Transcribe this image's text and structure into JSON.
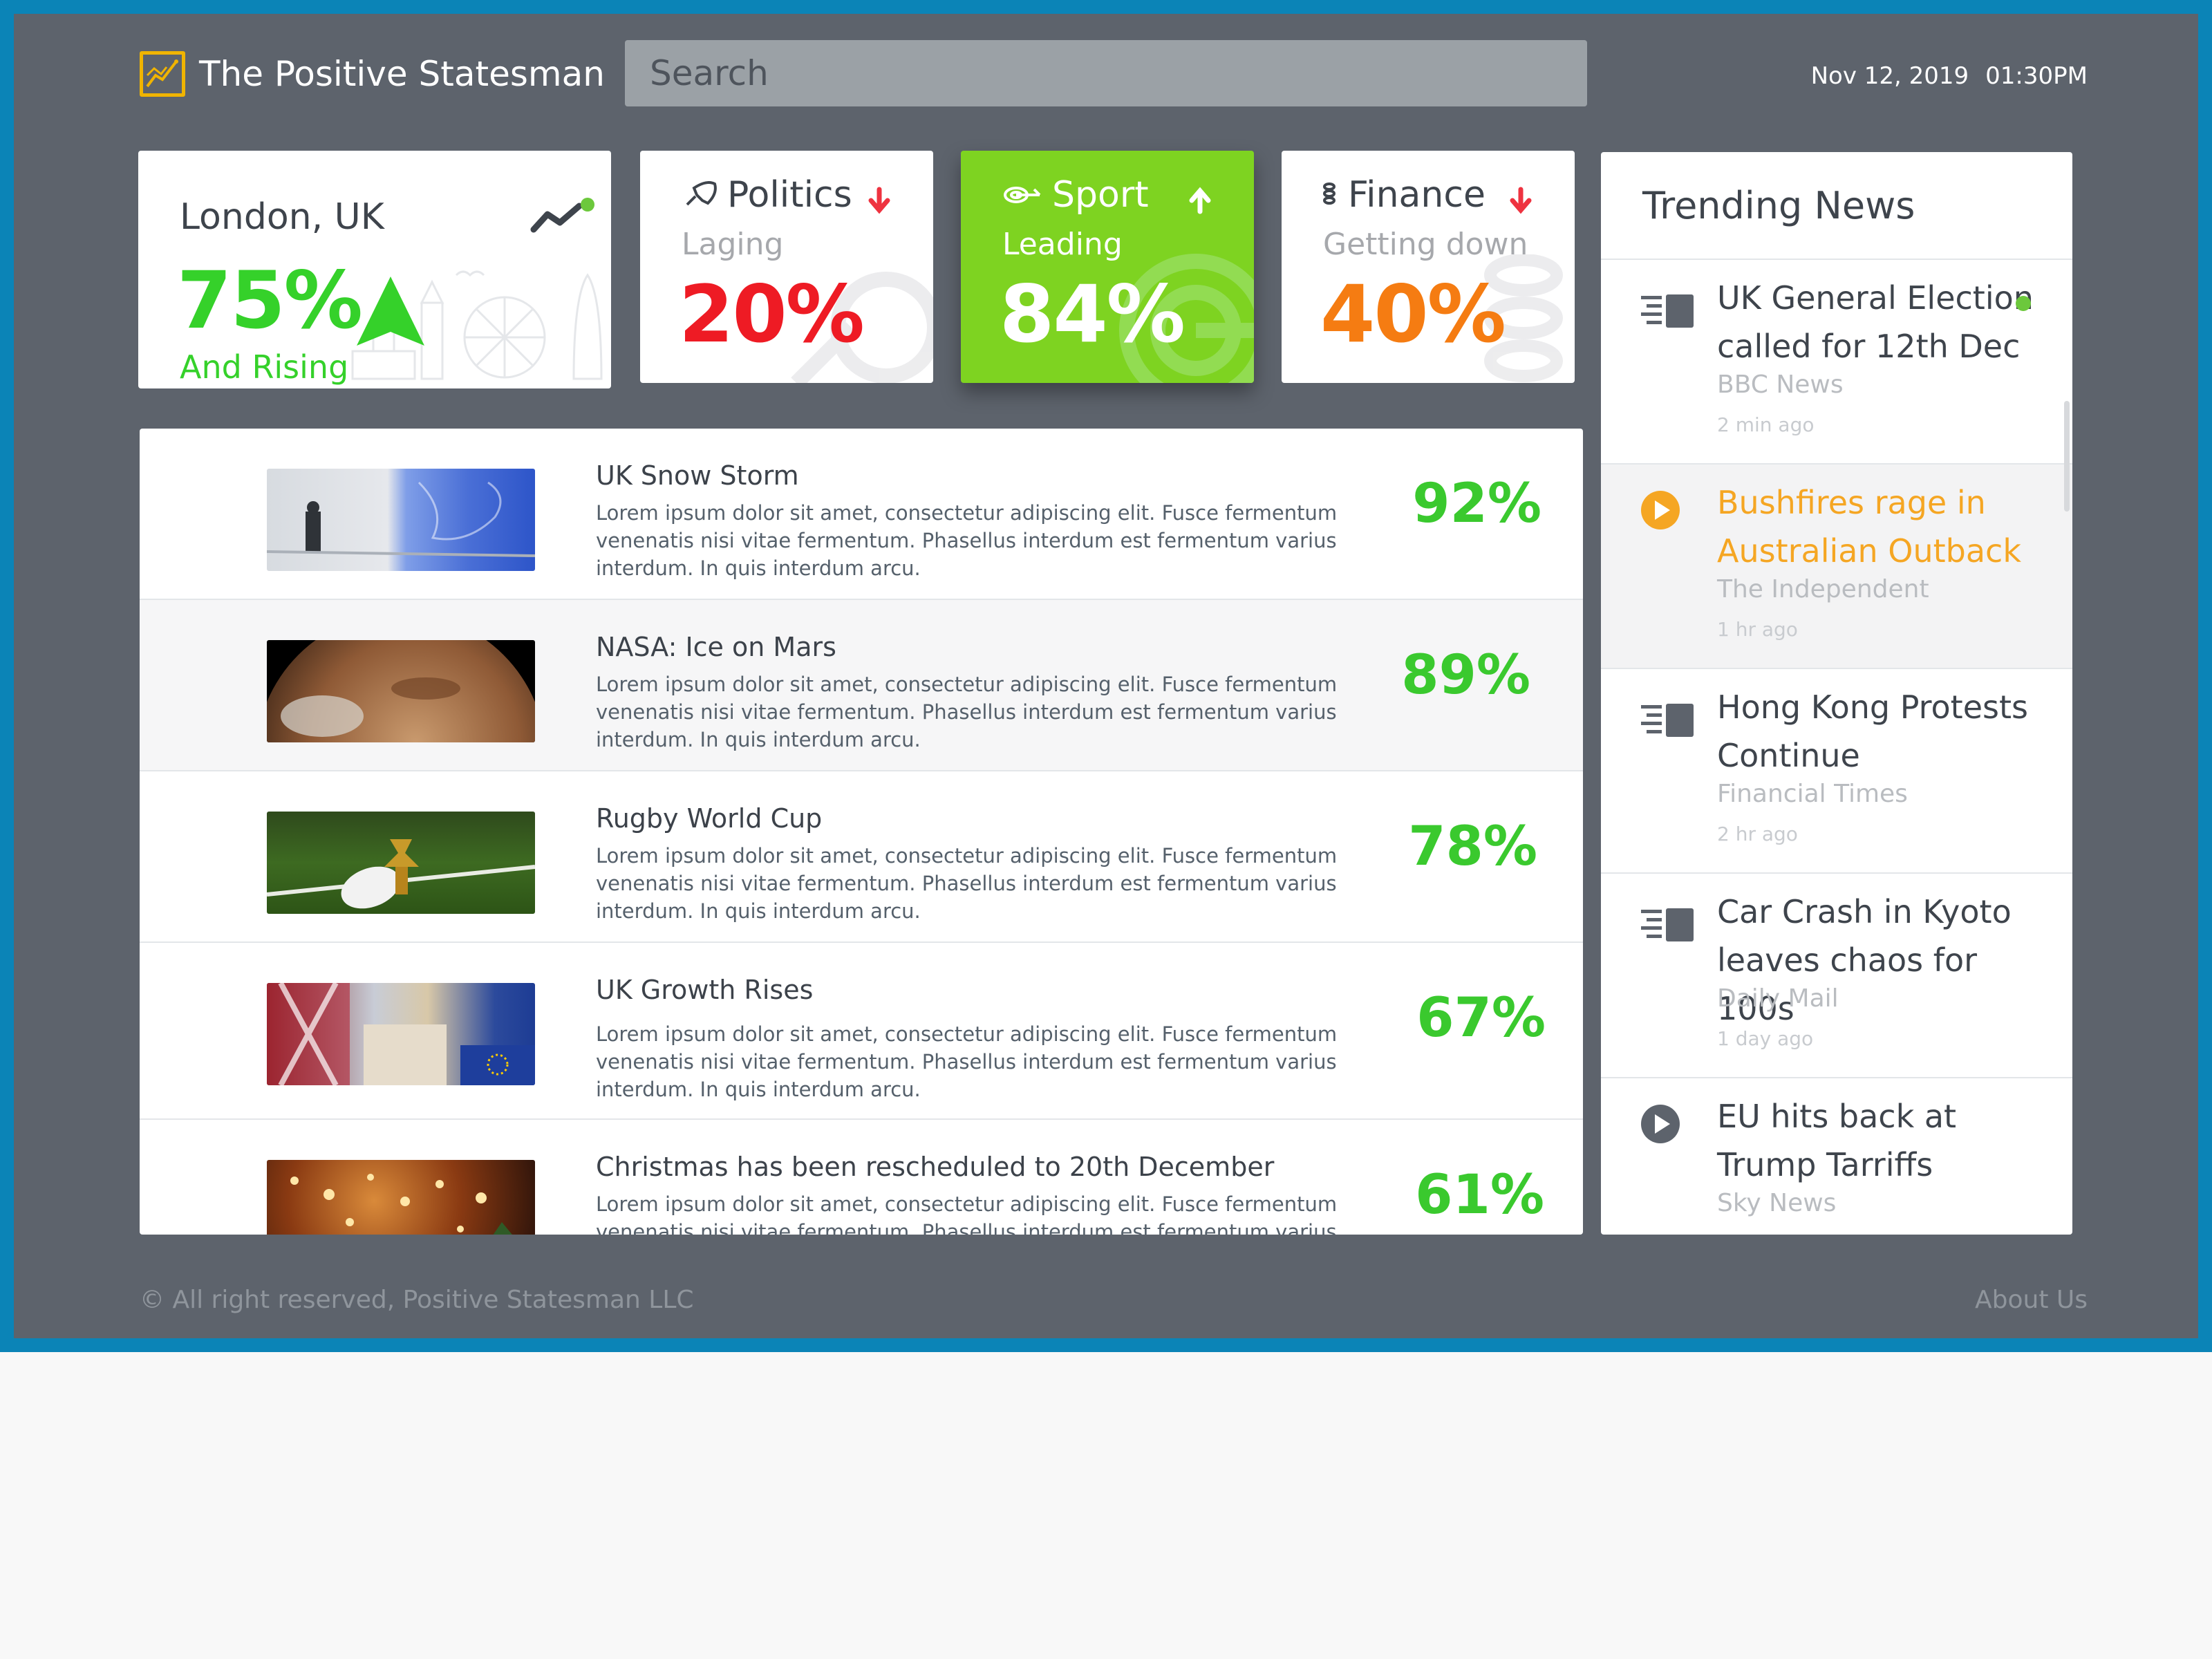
{
  "header": {
    "app_name": "The Positive Statesman",
    "search_placeholder": "Search",
    "date": "Nov 12, 2019",
    "time": "01:30PM"
  },
  "cards": {
    "location": {
      "title": "London, UK",
      "value": "75%",
      "subtitle": "And Rising",
      "value_color": "#35d12a",
      "trend": "up"
    },
    "politics": {
      "title": "Politics",
      "subtitle": "Laging",
      "value": "20%",
      "value_color": "#ee1b24",
      "trend": "down",
      "icon": "rocket-icon"
    },
    "sport": {
      "title": "Sport",
      "subtitle": "Leading",
      "value": "84%",
      "value_color": "#ffffff",
      "trend": "up",
      "icon": "target-icon",
      "highlighted": true
    },
    "finance": {
      "title": "Finance",
      "subtitle": "Getting down",
      "value": "40%",
      "value_color": "#f57c12",
      "trend": "down",
      "icon": "coins-icon"
    }
  },
  "news": [
    {
      "title": "UK Snow Storm",
      "body": "Lorem ipsum dolor sit amet, consectetur adipiscing elit. Fusce fermentum venenatis nisi vitae fermentum. Phasellus interdum est fermentum varius interdum. In quis interdum arcu.",
      "score": "92%",
      "image": "snow-storm"
    },
    {
      "title": "NASA: Ice on Mars",
      "body": "Lorem ipsum dolor sit amet, consectetur adipiscing elit. Fusce fermentum venenatis nisi vitae fermentum. Phasellus interdum est fermentum varius interdum. In quis interdum arcu.",
      "score": "89%",
      "image": "mars"
    },
    {
      "title": "Rugby World Cup",
      "body": "Lorem ipsum dolor sit amet, consectetur adipiscing elit. Fusce fermentum venenatis nisi vitae fermentum. Phasellus interdum est fermentum varius interdum. In quis interdum arcu.",
      "score": "78%",
      "image": "rugby"
    },
    {
      "title": "UK Growth Rises",
      "body": "Lorem ipsum dolor sit amet, consectetur adipiscing elit. Fusce fermentum venenatis nisi vitae fermentum. Phasellus interdum est fermentum varius interdum. In quis interdum arcu.",
      "score": "67%",
      "image": "uk-growth"
    },
    {
      "title": "Christmas has been rescheduled to 20th December",
      "body": "Lorem ipsum dolor sit amet, consectetur adipiscing elit. Fusce fermentum venenatis nisi vitae fermentum. Phasellus interdum est fermentum varius interdum. In quis interdum arcu.",
      "score": "61%",
      "image": "christmas"
    }
  ],
  "trending": {
    "title": "Trending News",
    "items": [
      {
        "title": "UK General Election called for 12th Dec",
        "source": "BBC News",
        "time": "2 min ago",
        "icon": "article-icon",
        "new": true
      },
      {
        "title": "Bushfires rage in Australian Outback",
        "source": "The Independent",
        "time": "1 hr ago",
        "icon": "play-icon",
        "selected": true
      },
      {
        "title": "Hong Kong Protests Continue",
        "source": "Financial Times",
        "time": "2 hr ago",
        "icon": "article-icon"
      },
      {
        "title": "Car Crash in Kyoto leaves chaos for 100s",
        "source": "Daily Mail",
        "time": "1 day ago",
        "icon": "article-icon"
      },
      {
        "title": "EU hits back at Trump Tarriffs",
        "source": "Sky News",
        "time": "",
        "icon": "play-icon"
      }
    ]
  },
  "footer": {
    "copyright": "© All right reserved, Positive Statesman LLC",
    "about": "About Us"
  }
}
